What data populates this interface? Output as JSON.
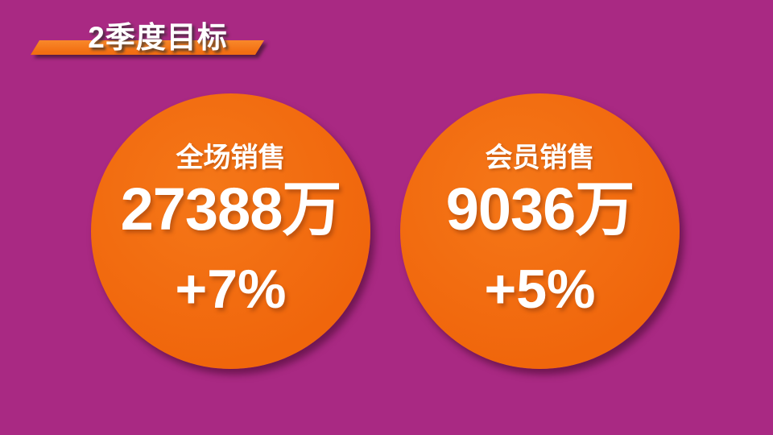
{
  "slide": {
    "title": "2季度目标",
    "colors": {
      "background": "#A92983",
      "circle": "#F0660C",
      "circle_hi": "#F57718",
      "banner_top": "#F8892A",
      "banner_bottom": "#F26E12",
      "text": "#FFFFFF"
    },
    "metrics": [
      {
        "label": "全场销售",
        "value": "27388万",
        "delta": "+7%"
      },
      {
        "label": "会员销售",
        "value": "9036万",
        "delta": "+5%"
      }
    ]
  }
}
